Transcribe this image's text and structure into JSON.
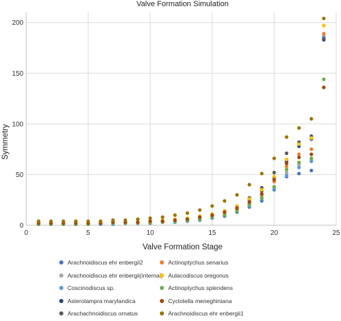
{
  "chart_data": {
    "type": "scatter",
    "title": "Valve Formation Simulation",
    "xlabel": "Valve Formation Stage",
    "ylabel": "Symmetry",
    "xlim": [
      0,
      25
    ],
    "ylim": [
      0,
      210
    ],
    "xticks": [
      0,
      5,
      10,
      15,
      20,
      25
    ],
    "yticks": [
      0,
      50,
      100,
      150,
      200
    ],
    "grid": true,
    "legend_position": "bottom",
    "x": [
      1,
      2,
      3,
      4,
      5,
      6,
      7,
      8,
      9,
      10,
      11,
      12,
      13,
      14,
      15,
      16,
      17,
      18,
      19,
      20,
      21,
      22,
      23,
      24
    ],
    "series": [
      {
        "name": "Arachnoidiscus ehr enbergii2",
        "color": "#4472c4",
        "values": [
          1,
          1,
          1,
          1,
          1,
          1,
          1,
          2,
          2,
          2,
          3,
          3,
          4,
          5,
          7,
          9,
          13,
          18,
          24,
          35,
          48,
          51,
          54,
          186
        ]
      },
      {
        "name": "Arachnoidiscus ehr enbergii(internal)",
        "color": "#a5a5a5",
        "values": [
          2,
          2,
          2,
          2,
          2,
          2,
          2,
          2,
          3,
          3,
          3,
          4,
          5,
          6,
          8,
          11,
          15,
          21,
          28,
          38,
          52,
          60,
          65,
          187
        ]
      },
      {
        "name": "Coscinodiscus sp.",
        "color": "#5b9bd5",
        "values": [
          1,
          1,
          1,
          1,
          1,
          1,
          1,
          2,
          2,
          2,
          3,
          3,
          4,
          5,
          7,
          10,
          14,
          19,
          26,
          36,
          49,
          57,
          63,
          185
        ]
      },
      {
        "name": "Asterolampra marylandica",
        "color": "#264478",
        "values": [
          2,
          2,
          2,
          2,
          2,
          2,
          3,
          3,
          3,
          4,
          4,
          5,
          6,
          8,
          10,
          13,
          18,
          25,
          34,
          47,
          63,
          78,
          85,
          183
        ]
      },
      {
        "name": "Arachachnoidiscus ornatus",
        "color": "#595959",
        "values": [
          2,
          2,
          2,
          2,
          2,
          2,
          3,
          3,
          3,
          4,
          4,
          5,
          6,
          8,
          11,
          14,
          19,
          27,
          37,
          52,
          71,
          82,
          88,
          184
        ]
      },
      {
        "name": "Actinoptychus senarius",
        "color": "#ed7d31",
        "values": [
          2,
          2,
          2,
          2,
          2,
          2,
          3,
          3,
          3,
          4,
          4,
          5,
          6,
          7,
          9,
          12,
          16,
          22,
          30,
          43,
          58,
          70,
          75,
          189
        ]
      },
      {
        "name": "Aulacodiscus oregonus",
        "color": "#ffc000",
        "values": [
          2,
          2,
          2,
          2,
          2,
          3,
          3,
          3,
          3,
          4,
          5,
          6,
          7,
          9,
          11,
          14,
          19,
          26,
          35,
          48,
          65,
          80,
          86,
          197
        ]
      },
      {
        "name": "Actinoptychus splendens",
        "color": "#70ad47",
        "values": [
          1,
          1,
          1,
          1,
          1,
          2,
          2,
          2,
          2,
          2,
          3,
          4,
          5,
          6,
          8,
          10,
          14,
          20,
          27,
          38,
          55,
          62,
          66,
          144
        ]
      },
      {
        "name": "Cyclotella meneghiniana",
        "color": "#9e480e",
        "values": [
          2,
          2,
          2,
          2,
          2,
          2,
          3,
          3,
          3,
          4,
          4,
          5,
          6,
          8,
          10,
          13,
          17,
          23,
          31,
          45,
          61,
          67,
          70,
          136
        ]
      },
      {
        "name": "Arachnoidiscus ehr enbergii1",
        "color": "#997300",
        "values": [
          4,
          4,
          4,
          4,
          4,
          4,
          5,
          5,
          6,
          7,
          8,
          10,
          12,
          15,
          19,
          24,
          30,
          40,
          51,
          66,
          87,
          96,
          105,
          204
        ]
      }
    ]
  }
}
